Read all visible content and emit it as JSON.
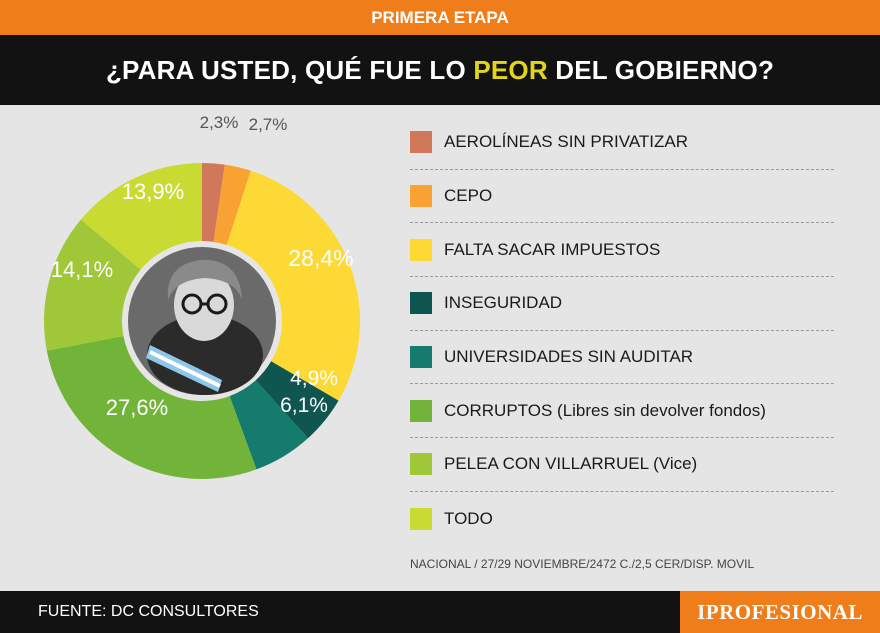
{
  "header": {
    "stage": "PRIMERA ETAPA",
    "title_before": "¿PARA USTED, QUÉ FUE LO ",
    "title_highlight": "PEOR",
    "title_after": " DEL GOBIERNO?"
  },
  "chart_data": {
    "type": "pie",
    "variant": "donut",
    "title": "¿PARA USTED, QUÉ FUE LO PEOR DEL GOBIERNO?",
    "categories": [
      "AEROLÍNEAS SIN PRIVATIZAR",
      "CEPO",
      "FALTA SACAR IMPUESTOS",
      "INSEGURIDAD",
      "UNIVERSIDADES SIN AUDITAR",
      "CORRUPTOS (Libres sin devolver fondos)",
      "PELEA CON VILLARRUEL (Vice)",
      "TODO"
    ],
    "values": [
      2.3,
      2.7,
      28.4,
      4.9,
      6.1,
      27.6,
      14.1,
      13.9
    ],
    "labels": [
      "2,3%",
      "2,7%",
      "28,4%",
      "4,9%",
      "6,1%",
      "27,6%",
      "14,1%",
      "13,9%"
    ],
    "colors": [
      "#d1775a",
      "#f8a331",
      "#fdd935",
      "#0f5550",
      "#157b6d",
      "#72b43a",
      "#a0c738",
      "#c9da33"
    ],
    "legend_position": "right"
  },
  "footer": {
    "note": "NACIONAL / 27/29 NOVIEMBRE/2472 C./2,5 CER/DISP. MOVIL",
    "source": "FUENTE: DC CONSULTORES",
    "brand": "IPROFESIONAL"
  }
}
